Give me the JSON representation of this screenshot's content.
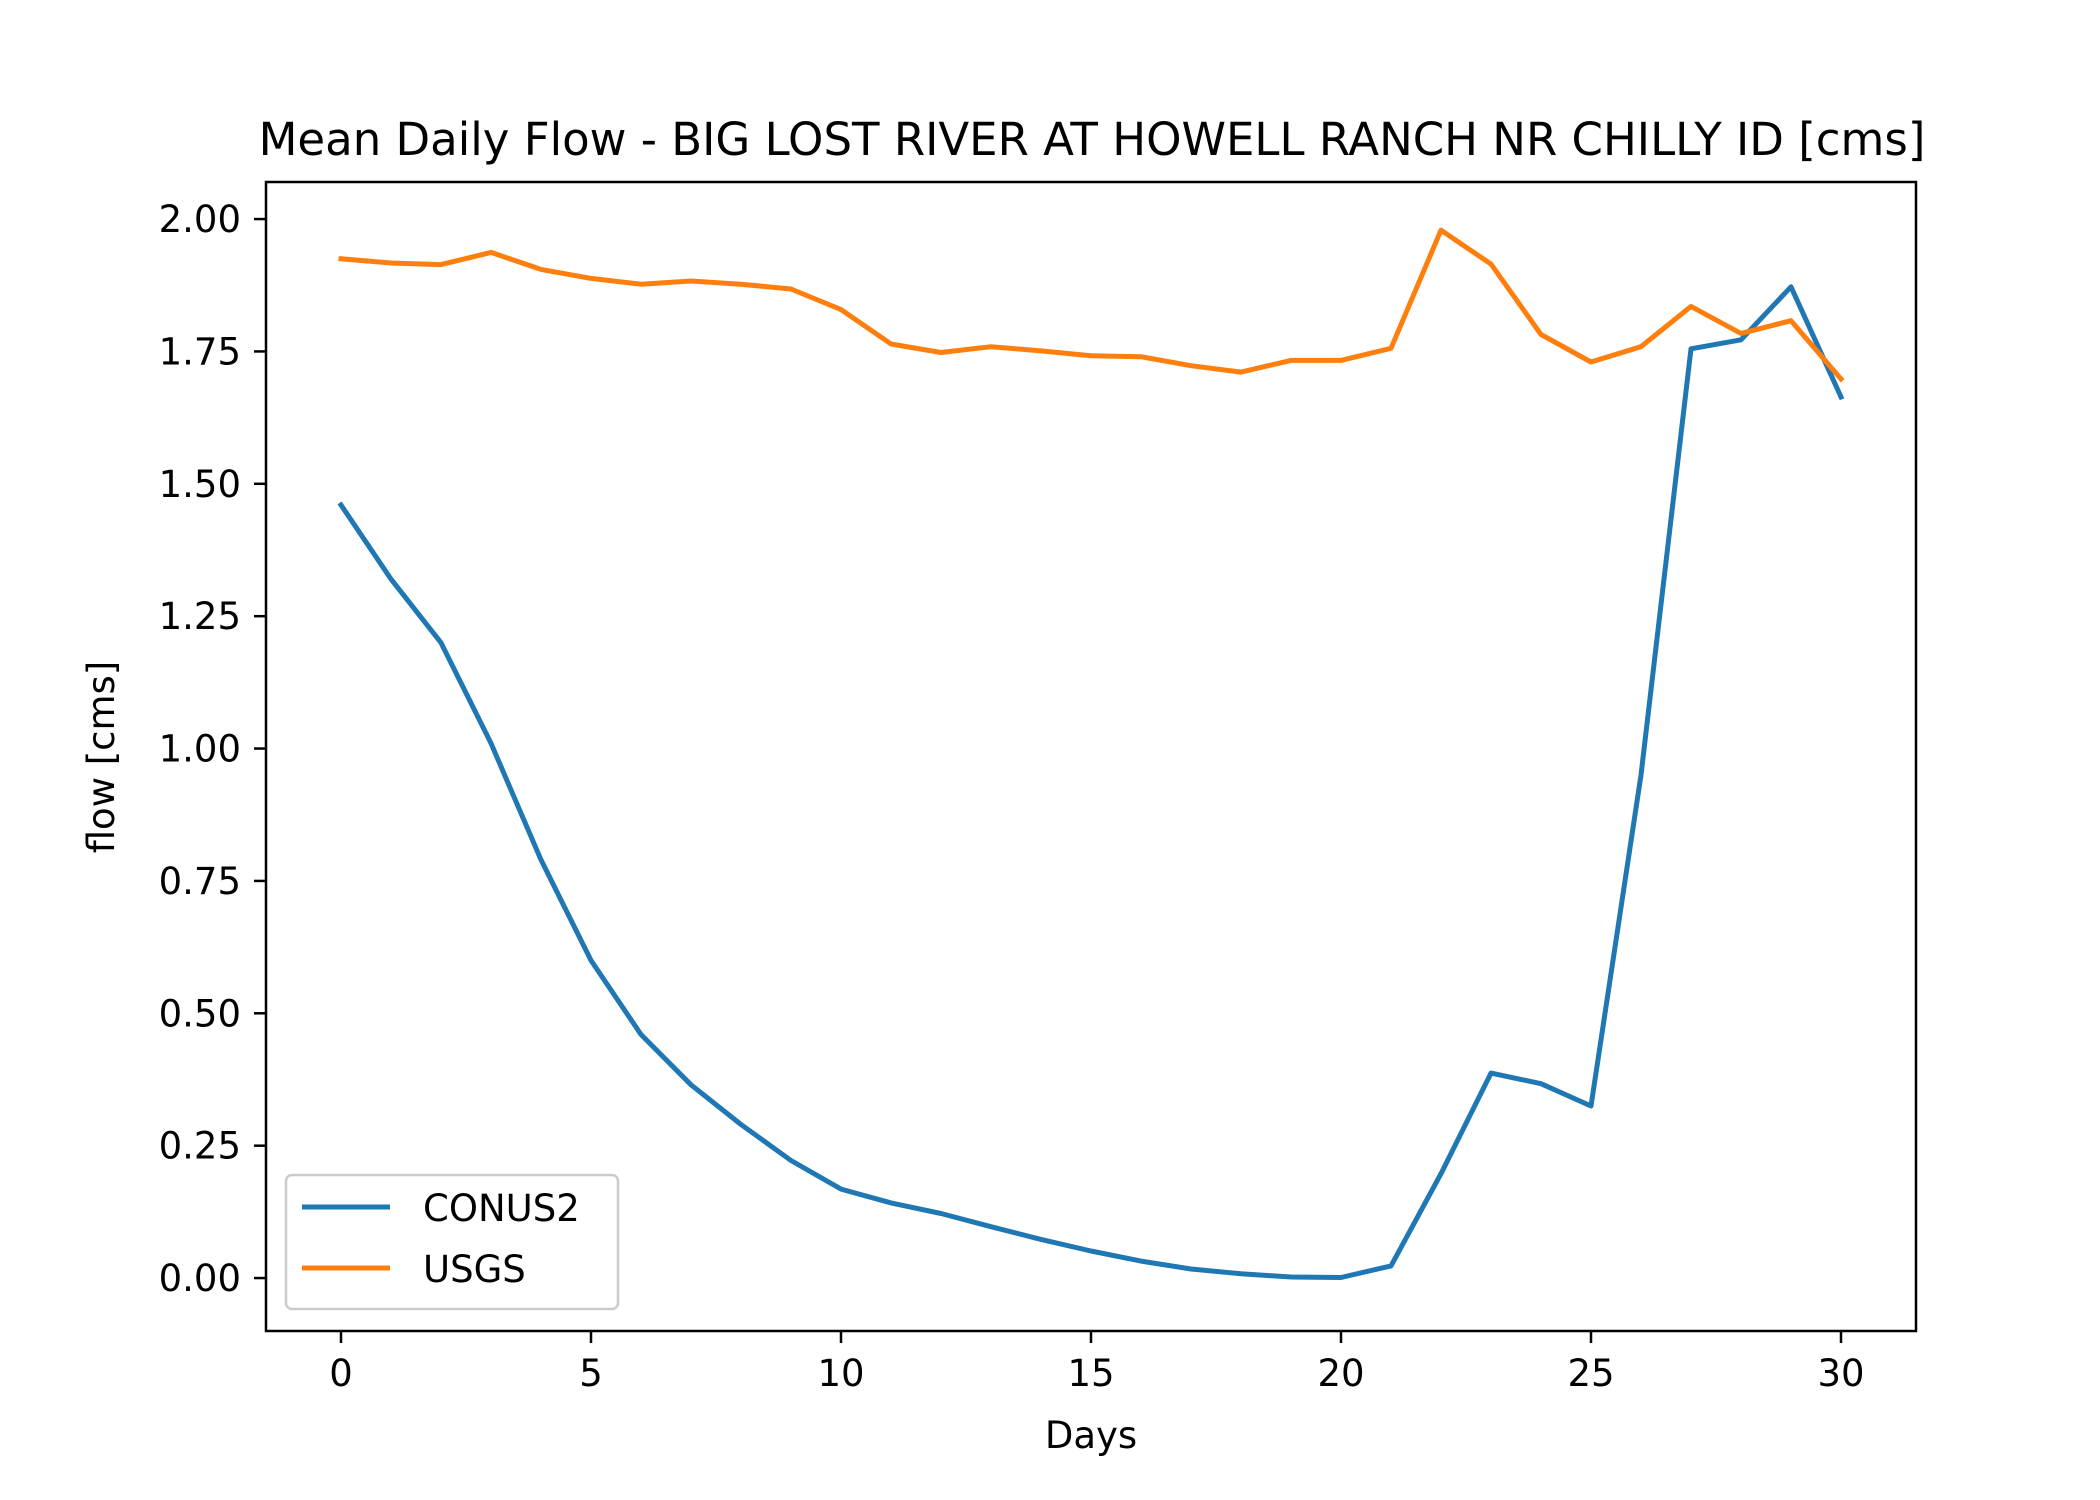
{
  "chart_data": {
    "type": "line",
    "title": "Mean Daily Flow - BIG LOST RIVER AT HOWELL RANCH NR CHILLY ID [cms]",
    "xlabel": "Days",
    "ylabel": "flow [cms]",
    "xlim": [
      -1.5,
      31.5
    ],
    "ylim": [
      -0.1,
      2.07
    ],
    "xticks": [
      0,
      5,
      10,
      15,
      20,
      25,
      30
    ],
    "yticks": [
      0.0,
      0.25,
      0.5,
      0.75,
      1.0,
      1.25,
      1.5,
      1.75,
      2.0
    ],
    "xtick_labels": [
      "0",
      "5",
      "10",
      "15",
      "20",
      "25",
      "30"
    ],
    "ytick_labels": [
      "0.00",
      "0.25",
      "0.50",
      "0.75",
      "1.00",
      "1.25",
      "1.50",
      "1.75",
      "2.00"
    ],
    "grid": false,
    "legend_position": "lower-left",
    "x": [
      0,
      1,
      2,
      3,
      4,
      5,
      6,
      7,
      8,
      9,
      10,
      11,
      12,
      13,
      14,
      15,
      16,
      17,
      18,
      19,
      20,
      21,
      22,
      23,
      24,
      25,
      26,
      27,
      28,
      29,
      30
    ],
    "series": [
      {
        "name": "CONUS2",
        "color": "#1f77b4",
        "values": [
          1.46,
          1.32,
          1.2,
          1.01,
          0.79,
          0.6,
          0.46,
          0.365,
          0.29,
          0.222,
          0.168,
          0.142,
          0.122,
          0.097,
          0.073,
          0.051,
          0.032,
          0.017,
          0.008,
          0.002,
          0.001,
          0.023,
          0.197,
          0.387,
          0.367,
          0.325,
          0.95,
          1.755,
          1.772,
          1.872,
          1.664
        ]
      },
      {
        "name": "USGS",
        "color": "#ff7f0e",
        "values": [
          1.925,
          1.917,
          1.914,
          1.937,
          1.905,
          1.888,
          1.877,
          1.883,
          1.877,
          1.868,
          1.829,
          1.764,
          1.748,
          1.759,
          1.751,
          1.742,
          1.74,
          1.723,
          1.711,
          1.733,
          1.733,
          1.756,
          1.979,
          1.915,
          1.782,
          1.73,
          1.759,
          1.835,
          1.784,
          1.808,
          1.698
        ]
      }
    ]
  }
}
